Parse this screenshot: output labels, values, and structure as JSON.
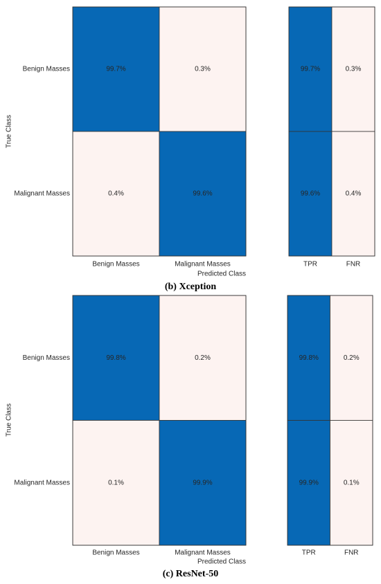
{
  "colors": {
    "high": "#0768b5",
    "low": "#fdf3f1",
    "border": "#333333",
    "text_on_high": "#ffffff",
    "text_on_low": "#262626"
  },
  "chart_data": [
    {
      "type": "heatmap",
      "caption": "(b) Xception",
      "xlabel": "Predicted Class",
      "ylabel": "True Class",
      "classes": [
        "Benign Masses",
        "Malignant Masses"
      ],
      "matrix": [
        [
          99.7,
          0.3
        ],
        [
          0.4,
          99.6
        ]
      ],
      "matrix_labels": [
        [
          "99.7%",
          "0.3%"
        ],
        [
          "0.4%",
          "99.6%"
        ]
      ],
      "summary_columns": [
        "TPR",
        "FNR"
      ],
      "summary": [
        [
          99.7,
          0.3
        ],
        [
          99.6,
          0.4
        ]
      ],
      "summary_labels": [
        [
          "99.7%",
          "0.3%"
        ],
        [
          "99.6%",
          "0.4%"
        ]
      ]
    },
    {
      "type": "heatmap",
      "caption": "(c) ResNet-50",
      "xlabel": "Predicted Class",
      "ylabel": "True Class",
      "classes": [
        "Benign Masses",
        "Malignant Masses"
      ],
      "matrix": [
        [
          99.8,
          0.2
        ],
        [
          0.1,
          99.9
        ]
      ],
      "matrix_labels": [
        [
          "99.8%",
          "0.2%"
        ],
        [
          "0.1%",
          "99.9%"
        ]
      ],
      "summary_columns": [
        "TPR",
        "FNR"
      ],
      "summary": [
        [
          99.8,
          0.2
        ],
        [
          99.9,
          0.1
        ]
      ],
      "summary_labels": [
        [
          "99.8%",
          "0.2%"
        ],
        [
          "99.9%",
          "0.1%"
        ]
      ]
    }
  ]
}
